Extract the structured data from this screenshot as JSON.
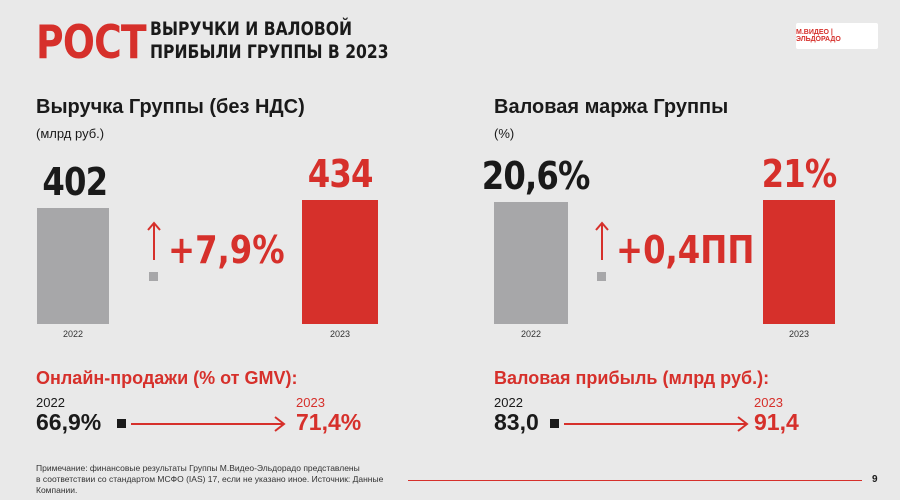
{
  "header": {
    "title_big": "РОСТ",
    "title_small_line1": "ВЫРУЧКИ И ВАЛОВОЙ",
    "title_small_line2": "ПРИБЫЛИ ГРУППЫ В 2023",
    "logo_text": "М.ВИДЕО | ЭЛЬДОРАДО"
  },
  "colors": {
    "accent": "#d6302b",
    "gray_bar": "#a7a7a9",
    "background": "#e9e9e9"
  },
  "chart_data": [
    {
      "type": "bar",
      "title": "Выручка Группы (без НДС)",
      "subtitle": "(млрд руб.)",
      "categories": [
        "2022",
        "2023"
      ],
      "values": [
        402,
        434
      ],
      "value_labels": [
        "402",
        "434"
      ],
      "colors": [
        "#a7a7a9",
        "#d6302b"
      ],
      "delta_label": "+7,9%"
    },
    {
      "type": "bar",
      "title": "Валовая маржа Группы",
      "subtitle": "(%)",
      "categories": [
        "2022",
        "2023"
      ],
      "values": [
        20.6,
        21
      ],
      "value_labels": [
        "20,6%",
        "21%"
      ],
      "colors": [
        "#a7a7a9",
        "#d6302b"
      ],
      "delta_label": "+0,4ПП"
    }
  ],
  "kpis": [
    {
      "title": "Онлайн-продажи (% от GMV):",
      "year_from": "2022",
      "value_from": "66,9%",
      "year_to": "2023",
      "value_to": "71,4%"
    },
    {
      "title": "Валовая прибыль (млрд руб.):",
      "year_from": "2022",
      "value_from": "83,0",
      "year_to": "2023",
      "value_to": "91,4"
    }
  ],
  "footer": {
    "note_line1": "Примечание: финансовые результаты Группы М.Видео-Эльдорадо представлены",
    "note_line2": "в соответствии со стандартом МСФО (IAS) 17, если не указано иное. Источник: Данные Компании.",
    "page_number": "9"
  }
}
